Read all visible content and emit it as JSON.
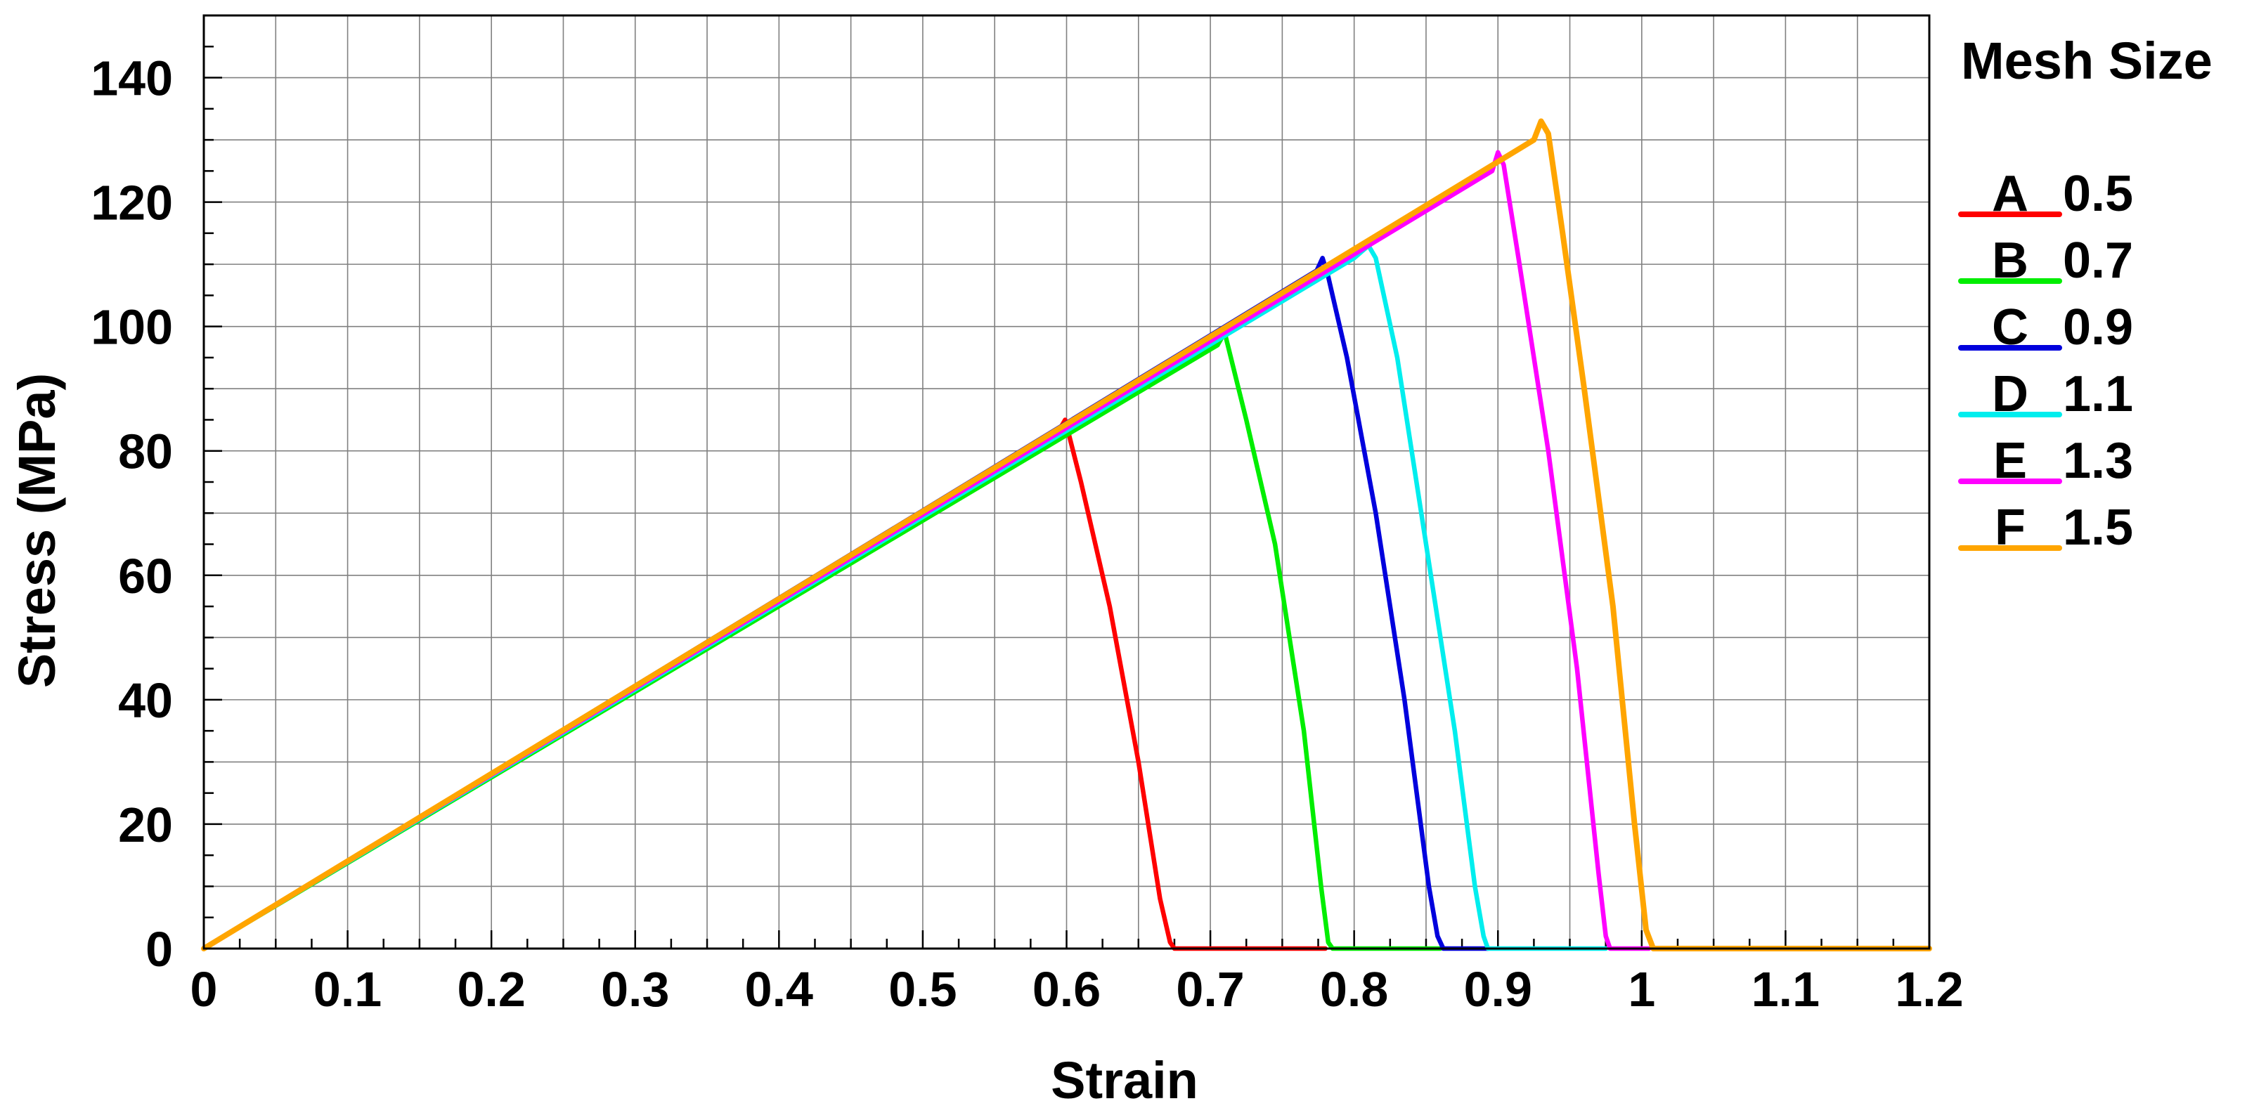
{
  "chart_data": {
    "type": "line",
    "title": "",
    "xlabel": "Strain",
    "ylabel": "Stress (MPa)",
    "xlim": [
      0,
      1.2
    ],
    "ylim": [
      0,
      150
    ],
    "xticks": [
      0,
      0.1,
      0.2,
      0.3,
      0.4,
      0.5,
      0.6,
      0.7,
      0.8,
      0.9,
      1,
      1.1,
      1.2
    ],
    "xtick_labels": [
      "0",
      "0.1",
      "0.2",
      "0.3",
      "0.4",
      "0.5",
      "0.6",
      "0.7",
      "0.8",
      "0.9",
      "1",
      "1.1",
      "1.2"
    ],
    "yticks": [
      0,
      20,
      40,
      60,
      80,
      100,
      120,
      140
    ],
    "ytick_labels": [
      "0",
      "20",
      "40",
      "60",
      "80",
      "100",
      "120",
      "140"
    ],
    "grid": true,
    "grid_minor_x": 0.05,
    "grid_minor_y": 10,
    "legend": {
      "title": "Mesh Size",
      "placement": "right"
    },
    "series": [
      {
        "name": "A  0.5",
        "letter": "A",
        "value": "0.5",
        "color": "#ff0000",
        "x": [
          0,
          0.594,
          0.599,
          0.61,
          0.63,
          0.65,
          0.665,
          0.672,
          0.675,
          0.78
        ],
        "y": [
          0,
          83,
          85,
          75,
          55,
          30,
          8,
          1,
          0,
          0
        ]
      },
      {
        "name": "B  0.7",
        "letter": "B",
        "value": "0.7",
        "color": "#00ee00",
        "x": [
          0,
          0.705,
          0.71,
          0.725,
          0.745,
          0.765,
          0.777,
          0.782,
          0.785,
          0.86
        ],
        "y": [
          0,
          97,
          99,
          85,
          65,
          35,
          10,
          1,
          0,
          0
        ]
      },
      {
        "name": "C  0.9",
        "letter": "C",
        "value": "0.9",
        "color": "#0000dd",
        "x": [
          0,
          0.774,
          0.778,
          0.782,
          0.795,
          0.815,
          0.835,
          0.852,
          0.858,
          0.862,
          0.893
        ],
        "y": [
          0,
          109,
          111,
          108,
          95,
          70,
          40,
          10,
          2,
          0,
          0
        ]
      },
      {
        "name": "D  1.1",
        "letter": "D",
        "value": "1.1",
        "color": "#00eeee",
        "x": [
          0,
          0.8,
          0.81,
          0.815,
          0.83,
          0.85,
          0.87,
          0.884,
          0.89,
          0.893,
          0.975
        ],
        "y": [
          0,
          111,
          113,
          111,
          95,
          65,
          35,
          10,
          2,
          0,
          0
        ]
      },
      {
        "name": "E  1.3",
        "letter": "E",
        "value": "1.3",
        "color": "#ff00ff",
        "x": [
          0,
          0.896,
          0.9,
          0.904,
          0.915,
          0.935,
          0.955,
          0.97,
          0.975,
          0.978,
          1.005
        ],
        "y": [
          0,
          125,
          128,
          126,
          110,
          80,
          45,
          12,
          2,
          0,
          0
        ]
      },
      {
        "name": "F  1.5",
        "letter": "F",
        "value": "1.5",
        "color": "#ffa500",
        "x": [
          0,
          0.925,
          0.93,
          0.935,
          0.945,
          0.96,
          0.98,
          0.995,
          1.003,
          1.008,
          1.2
        ],
        "y": [
          0,
          130,
          133,
          131,
          115,
          90,
          55,
          20,
          3,
          0,
          0
        ]
      }
    ]
  }
}
